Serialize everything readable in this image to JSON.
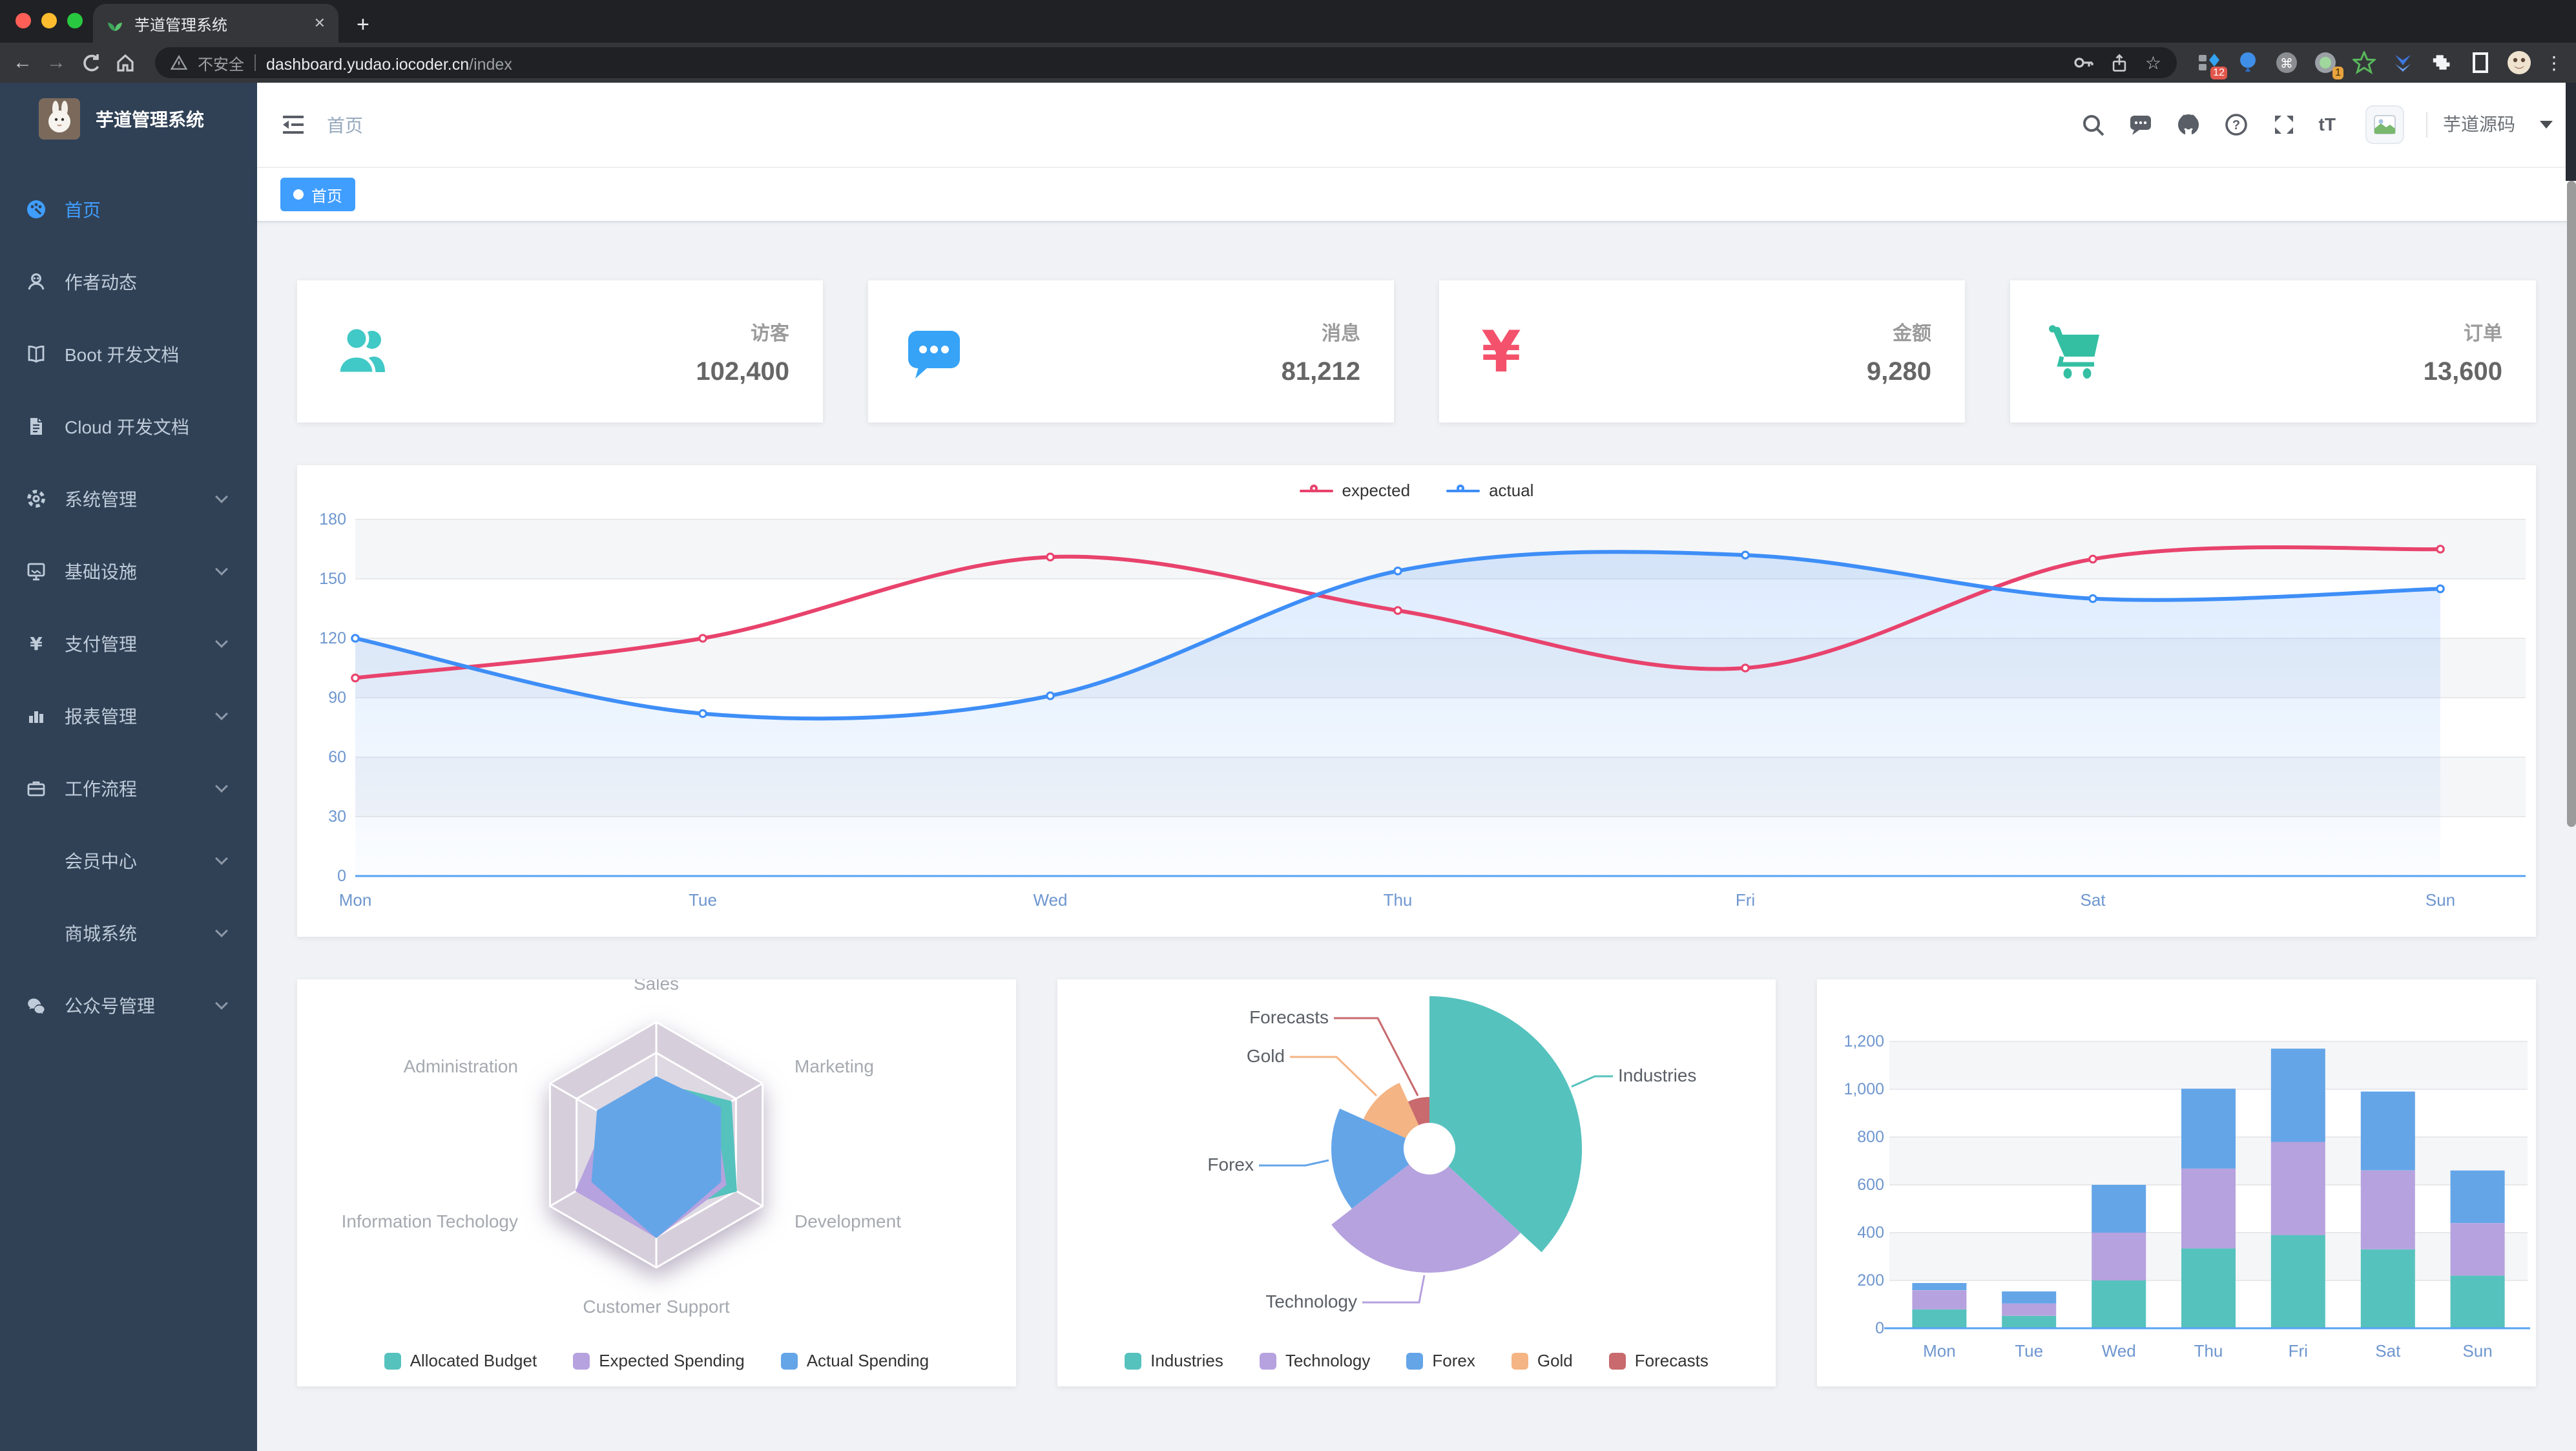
{
  "browser": {
    "tab_title": "芋道管理系统",
    "security_label": "不安全",
    "url_host": "dashboard.yudao.iocoder.cn",
    "url_path": "/index",
    "ext_badge_1": "12",
    "ext_badge_2": "1"
  },
  "icons": {
    "plus": "+",
    "close": "✕",
    "back": "←",
    "forward": "→",
    "star": "☆",
    "menu_dots": "⋮",
    "command": "⌘",
    "help": "?",
    "font_size": "tT"
  },
  "sidebar": {
    "logo_title": "芋道管理系统",
    "items": [
      {
        "label": "首页",
        "icon": "dashboard-icon",
        "active": true,
        "children": false
      },
      {
        "label": "作者动态",
        "icon": "author-icon",
        "active": false,
        "children": false
      },
      {
        "label": "Boot 开发文档",
        "icon": "book-icon",
        "active": false,
        "children": false
      },
      {
        "label": "Cloud 开发文档",
        "icon": "document-icon",
        "active": false,
        "children": false
      },
      {
        "label": "系统管理",
        "icon": "gear-icon",
        "active": false,
        "children": true
      },
      {
        "label": "基础设施",
        "icon": "monitor-icon",
        "active": false,
        "children": true
      },
      {
        "label": "支付管理",
        "icon": "yen-icon",
        "active": false,
        "children": true
      },
      {
        "label": "报表管理",
        "icon": "chart-bar-icon",
        "active": false,
        "children": true
      },
      {
        "label": "工作流程",
        "icon": "briefcase-icon",
        "active": false,
        "children": true
      },
      {
        "label": "会员中心",
        "icon": null,
        "active": false,
        "children": true
      },
      {
        "label": "商城系统",
        "icon": null,
        "active": false,
        "children": true
      },
      {
        "label": "公众号管理",
        "icon": "wechat-icon",
        "active": false,
        "children": true
      }
    ]
  },
  "header": {
    "breadcrumb": "首页",
    "username": "芋道源码"
  },
  "tags": {
    "items": [
      {
        "label": "首页",
        "active": true
      }
    ]
  },
  "stats": {
    "cards": [
      {
        "label": "访客",
        "value": "102,400",
        "icon": "peoples-icon",
        "color": "#40c9c6"
      },
      {
        "label": "消息",
        "value": "81,212",
        "icon": "message-icon",
        "color": "#36a3f7"
      },
      {
        "label": "金额",
        "value": "9,280",
        "icon": "money-icon",
        "color": "#f4516c"
      },
      {
        "label": "订单",
        "value": "13,600",
        "icon": "shopping-icon",
        "color": "#34bfa3"
      }
    ]
  },
  "chart_data": [
    {
      "id": "weekly-line",
      "type": "line",
      "x": [
        "Mon",
        "Tue",
        "Wed",
        "Thu",
        "Fri",
        "Sat",
        "Sun"
      ],
      "series": [
        {
          "name": "expected",
          "color": "#e8436d",
          "values": [
            100,
            120,
            161,
            134,
            105,
            160,
            165
          ]
        },
        {
          "name": "actual",
          "color": "#3e8ef7",
          "values": [
            120,
            82,
            91,
            154,
            162,
            140,
            145
          ],
          "area": true
        }
      ],
      "ylim": [
        0,
        180
      ],
      "yticks": [
        0,
        30,
        60,
        90,
        120,
        150,
        180
      ],
      "legend_position": "top",
      "grid": true
    },
    {
      "id": "budget-radar",
      "type": "radar",
      "indicators": [
        "Sales",
        "Administration",
        "Information Techology",
        "Customer Support",
        "Development",
        "Marketing"
      ],
      "series": [
        {
          "name": "Allocated Budget",
          "color": "#56c2be",
          "values": [
            0.5,
            0.35,
            0.6,
            0.55,
            0.75,
            0.7
          ]
        },
        {
          "name": "Expected Spending",
          "color": "#b6a2de",
          "values": [
            0.4,
            0.45,
            0.75,
            0.75,
            0.65,
            0.55
          ]
        },
        {
          "name": "Actual Spending",
          "color": "#64a5e8",
          "values": [
            0.55,
            0.55,
            0.6,
            0.75,
            0.6,
            0.6
          ]
        }
      ],
      "legend_position": "bottom"
    },
    {
      "id": "sector-pie",
      "type": "pie",
      "rose": true,
      "slices": [
        {
          "name": "Industries",
          "value": 320,
          "color": "#56c2be"
        },
        {
          "name": "Technology",
          "value": 240,
          "color": "#b6a2de"
        },
        {
          "name": "Forex",
          "value": 149,
          "color": "#64a5e8"
        },
        {
          "name": "Gold",
          "value": 100,
          "color": "#f5b483"
        },
        {
          "name": "Forecasts",
          "value": 59,
          "color": "#c86a6e"
        }
      ],
      "legend_position": "bottom"
    },
    {
      "id": "weekly-bar",
      "type": "bar",
      "stacked": true,
      "x": [
        "Mon",
        "Tue",
        "Wed",
        "Thu",
        "Fri",
        "Sat",
        "Sun"
      ],
      "series": [
        {
          "color": "#56c2be",
          "values": [
            79,
            52,
            200,
            334,
            390,
            330,
            220
          ]
        },
        {
          "color": "#b6a2de",
          "values": [
            80,
            52,
            200,
            334,
            390,
            330,
            220
          ]
        },
        {
          "color": "#64a5e8",
          "values": [
            30,
            50,
            200,
            334,
            390,
            330,
            220
          ]
        }
      ],
      "ylim": [
        0,
        1200
      ],
      "yticks": [
        0,
        200,
        400,
        600,
        800,
        1000,
        1200
      ]
    }
  ]
}
